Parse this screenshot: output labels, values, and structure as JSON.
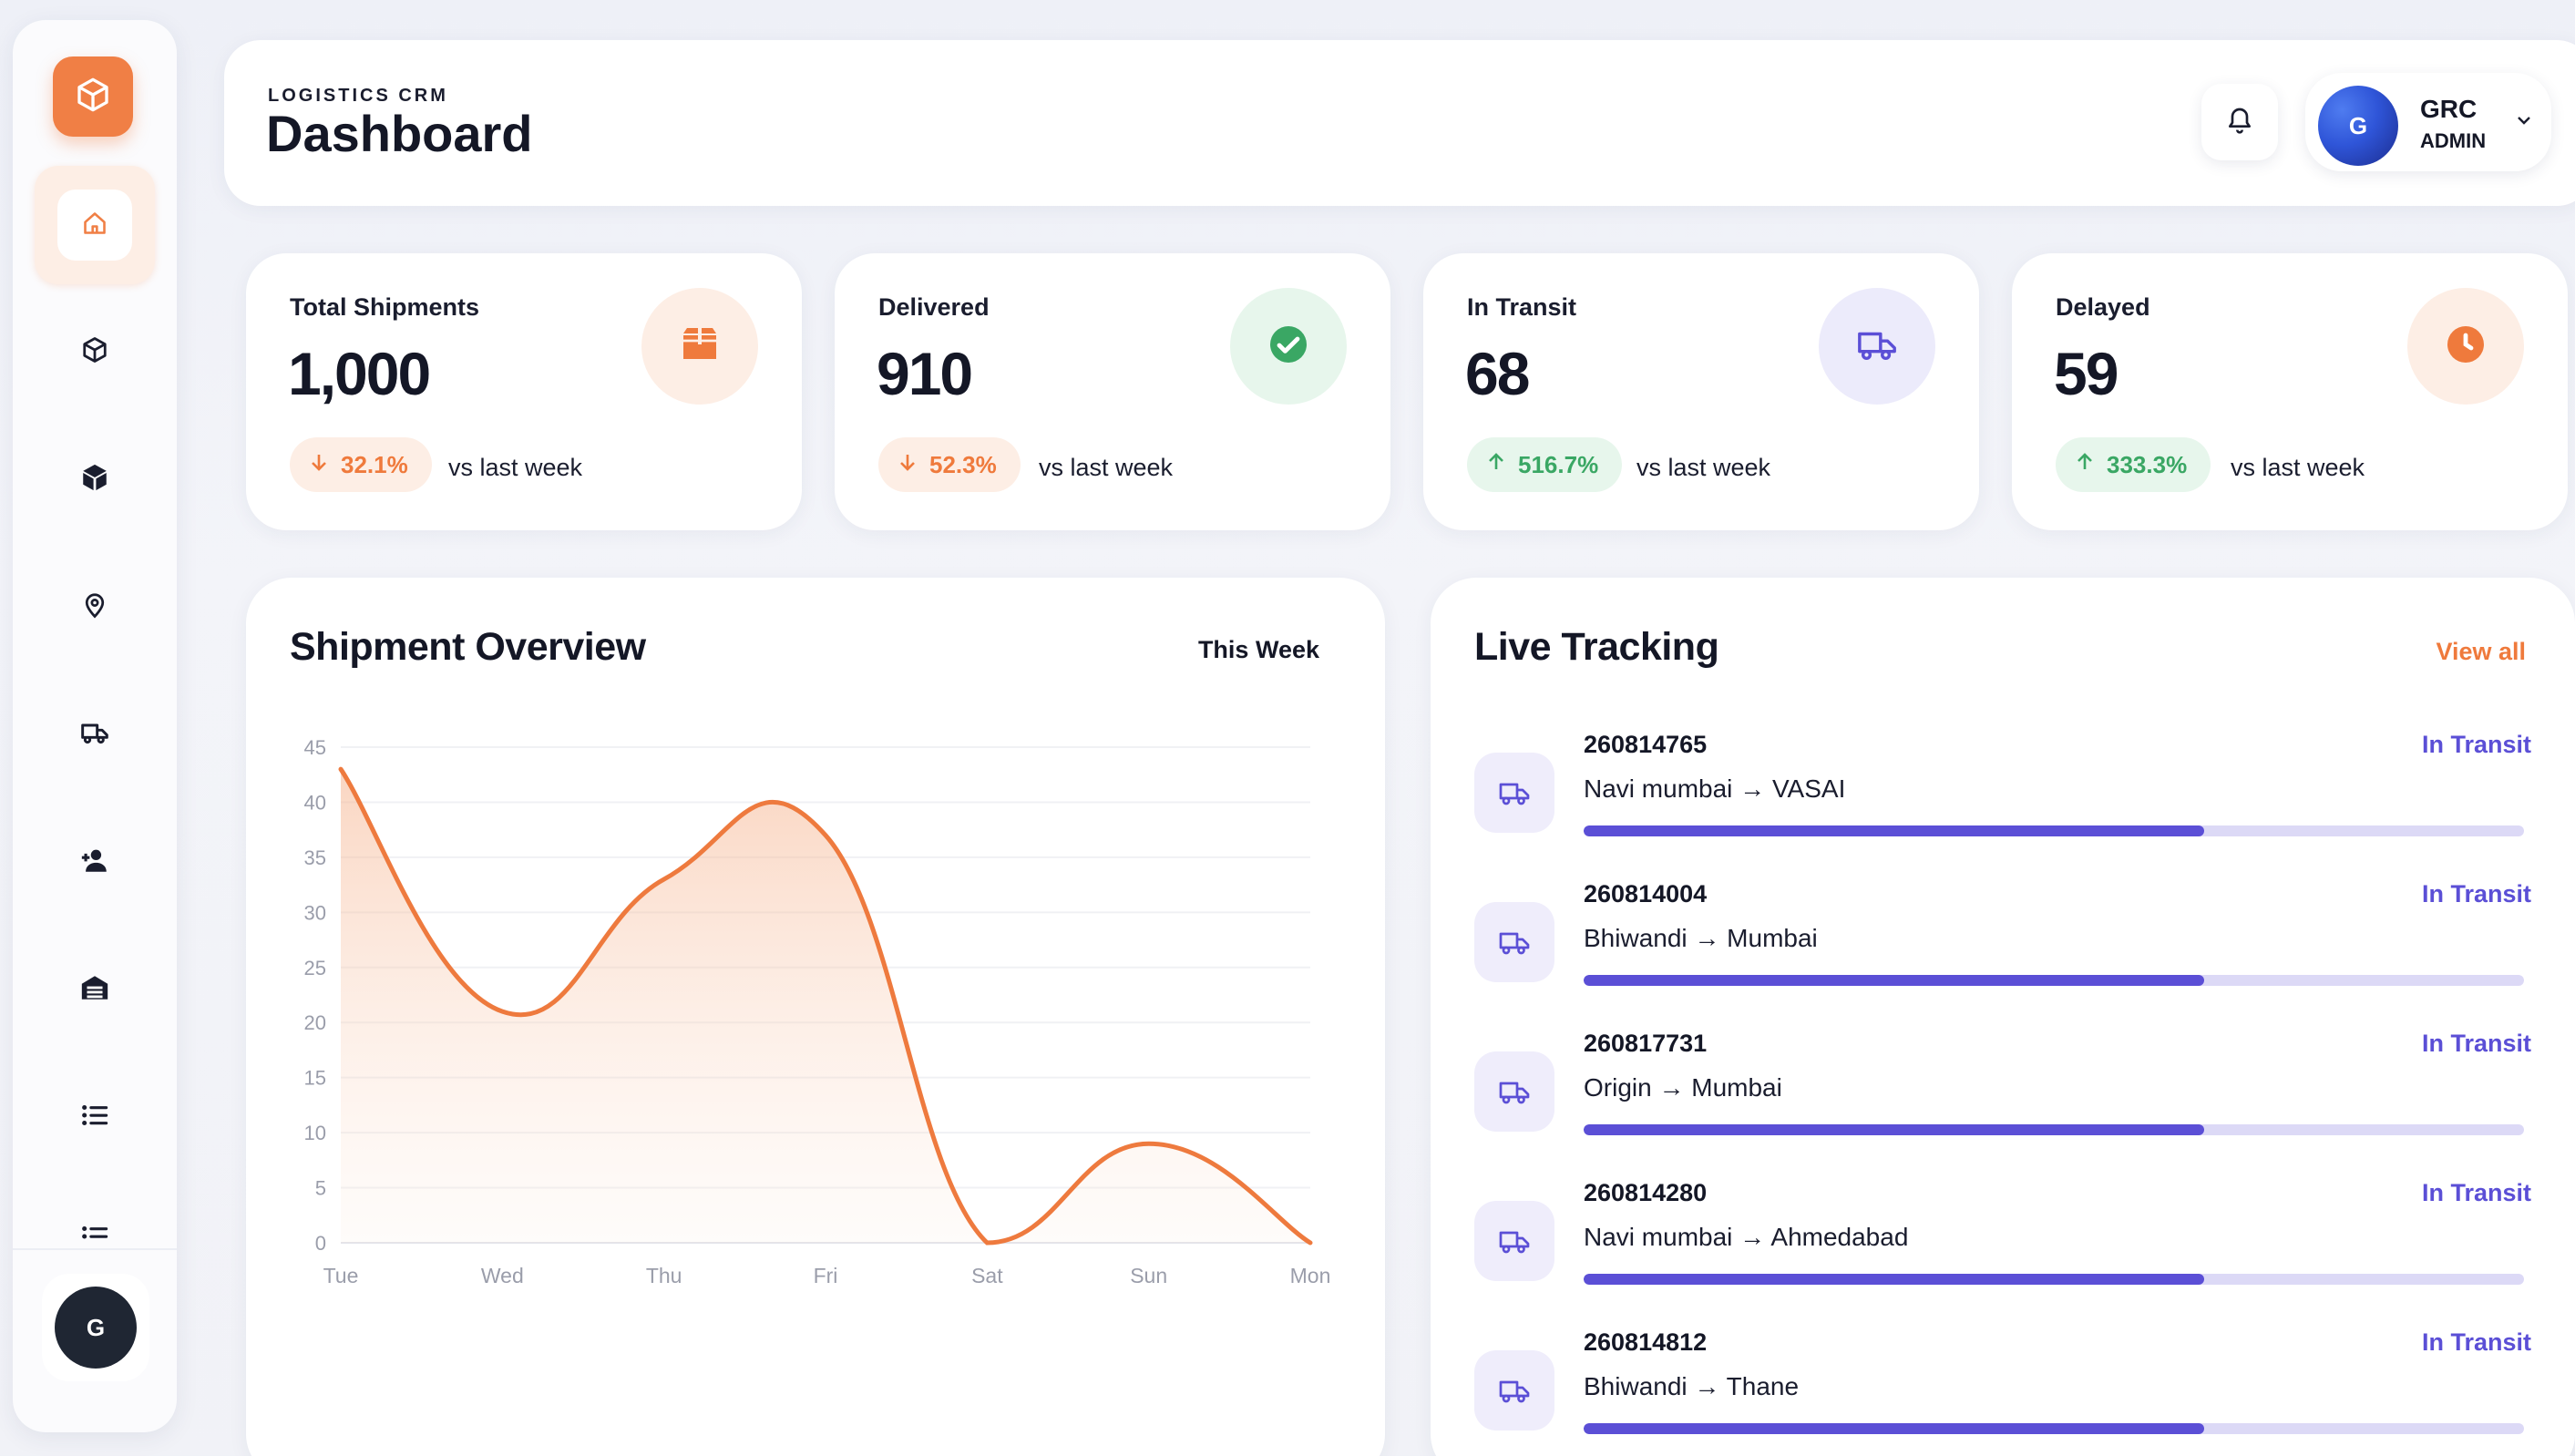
{
  "colors": {
    "accent": "#f07f45",
    "transit": "#5b4fd6",
    "positive": "#3aa764",
    "negative": "#ef7a3c"
  },
  "sidebar": {
    "logo_icon": "package-box-icon",
    "items": [
      {
        "icon": "home-icon",
        "active": true
      },
      {
        "icon": "package-outline-icon",
        "active": false
      },
      {
        "icon": "package-solid-icon",
        "active": false
      },
      {
        "icon": "location-pin-icon",
        "active": false
      },
      {
        "icon": "truck-icon",
        "active": false
      },
      {
        "icon": "add-user-icon",
        "active": false
      },
      {
        "icon": "warehouse-icon",
        "active": false
      },
      {
        "icon": "list-icon",
        "active": false
      },
      {
        "icon": "list-icon",
        "active": false
      }
    ],
    "avatar_initial": "G"
  },
  "header": {
    "eyebrow": "LOGISTICS CRM",
    "title": "Dashboard",
    "user": {
      "initial": "G",
      "name": "GRC",
      "role": "ADMIN"
    }
  },
  "stats": [
    {
      "label": "Total Shipments",
      "value": "1,000",
      "change": "32.1%",
      "direction": "down",
      "note": "vs last week",
      "icon": "box-icon"
    },
    {
      "label": "Delivered",
      "value": "910",
      "change": "52.3%",
      "direction": "down",
      "note": "vs last week",
      "icon": "check-circle-icon"
    },
    {
      "label": "In Transit",
      "value": "68",
      "change": "516.7%",
      "direction": "up",
      "note": "vs last week",
      "icon": "truck-icon"
    },
    {
      "label": "Delayed",
      "value": "59",
      "change": "333.3%",
      "direction": "up",
      "note": "vs last week",
      "icon": "clock-icon"
    }
  ],
  "overview": {
    "title": "Shipment Overview",
    "period": "This Week"
  },
  "chart_data": {
    "type": "area",
    "title": "Shipment Overview",
    "categories": [
      "Tue",
      "Wed",
      "Thu",
      "Fri",
      "Sat",
      "Sun",
      "Mon"
    ],
    "values": [
      43,
      21,
      33,
      37,
      0,
      9,
      0
    ],
    "ylim": [
      0,
      45
    ],
    "yticks": [
      0,
      5,
      10,
      15,
      20,
      25,
      30,
      35,
      40,
      45
    ],
    "grid": true,
    "line_color": "#ee7a3e"
  },
  "tracking": {
    "title": "Live Tracking",
    "view_all": "View all",
    "items": [
      {
        "id": "260814765",
        "route": "Navi mumbai → VASAI",
        "status": "In Transit",
        "progress": 0.66
      },
      {
        "id": "260814004",
        "route": "Bhiwandi → Mumbai",
        "status": "In Transit",
        "progress": 0.66
      },
      {
        "id": "260817731",
        "route": "Origin → Mumbai",
        "status": "In Transit",
        "progress": 0.66
      },
      {
        "id": "260814280",
        "route": "Navi mumbai → Ahmedabad",
        "status": "In Transit",
        "progress": 0.66
      },
      {
        "id": "260814812",
        "route": "Bhiwandi → Thane",
        "status": "In Transit",
        "progress": 0.66
      }
    ]
  }
}
